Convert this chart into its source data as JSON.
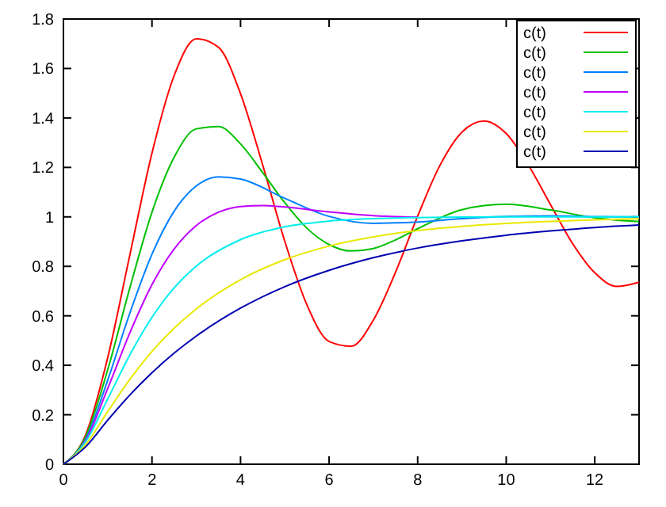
{
  "chart_data": {
    "type": "line",
    "xlim": [
      0,
      13
    ],
    "ylim": [
      0,
      1.8
    ],
    "xticks": [
      0,
      2,
      4,
      6,
      8,
      10,
      12
    ],
    "yticks": [
      0,
      0.2,
      0.4,
      0.6,
      0.8,
      1,
      1.2,
      1.4,
      1.6,
      1.8
    ],
    "legend": "top right",
    "marker": "none",
    "line_style": "solid",
    "series": [
      {
        "name": "c(t)",
        "color": "#ff0000",
        "x": [
          0,
          0.5,
          1,
          1.5,
          2,
          2.5,
          3,
          3.5,
          4,
          4.5,
          5,
          5.5,
          6,
          6.5,
          7,
          7.5,
          8,
          8.5,
          9,
          9.5,
          10,
          10.5,
          11,
          11.5,
          12,
          12.5,
          13
        ],
        "values": [
          0,
          0.118,
          0.431,
          0.846,
          1.258,
          1.571,
          1.72,
          1.686,
          1.498,
          1.21,
          0.901,
          0.644,
          0.496,
          0.477,
          0.583,
          0.776,
          1.003,
          1.207,
          1.343,
          1.388,
          1.337,
          1.21,
          1.05,
          0.892,
          0.774,
          0.719,
          0.736
        ]
      },
      {
        "name": "c(t)",
        "color": "#00c000",
        "x": [
          0,
          0.5,
          1,
          1.5,
          2,
          2.5,
          3,
          3.5,
          4,
          4.5,
          5,
          5.5,
          6,
          6.5,
          7,
          7.5,
          8,
          9,
          10,
          11,
          12,
          13
        ],
        "values": [
          0,
          0.111,
          0.382,
          0.713,
          1.019,
          1.241,
          1.356,
          1.365,
          1.295,
          1.179,
          1.057,
          0.954,
          0.888,
          0.862,
          0.872,
          0.907,
          0.952,
          1.029,
          1.051,
          1.028,
          0.996,
          0.981
        ]
      },
      {
        "name": "c(t)",
        "color": "#0080ff",
        "x": [
          0,
          0.5,
          1,
          1.5,
          2,
          2.5,
          3,
          3.5,
          4,
          5,
          6,
          7,
          8,
          9,
          10,
          11,
          12,
          13
        ],
        "values": [
          0,
          0.1,
          0.34,
          0.611,
          0.849,
          1.023,
          1.125,
          1.162,
          1.153,
          1.075,
          1.002,
          0.974,
          0.979,
          0.993,
          1.002,
          1.004,
          1.001,
          1
        ]
      },
      {
        "name": "c(t)",
        "color": "#c000ff",
        "x": [
          0,
          0.5,
          1,
          1.5,
          2,
          2.5,
          3,
          3.5,
          4,
          4.5,
          5,
          6,
          7,
          8
        ],
        "values": [
          0,
          0.095,
          0.306,
          0.531,
          0.726,
          0.87,
          0.965,
          1.019,
          1.042,
          1.046,
          1.04,
          1.02,
          1.005,
          0.999
        ]
      },
      {
        "name": "c(t)",
        "color": "#00eeee",
        "x": [
          0,
          0.5,
          1,
          1.5,
          2,
          2.5,
          3,
          4,
          5,
          6,
          7,
          8,
          9,
          10,
          11,
          12,
          13
        ],
        "values": [
          0,
          0.09,
          0.264,
          0.442,
          0.594,
          0.713,
          0.801,
          0.908,
          0.96,
          0.983,
          0.993,
          0.997,
          0.999,
          1,
          1,
          1,
          1
        ]
      },
      {
        "name": "c(t)",
        "color": "#e8e800",
        "x": [
          0,
          0.5,
          1,
          1.5,
          2,
          2.5,
          3,
          4,
          5,
          6,
          7,
          8,
          9,
          10,
          11,
          12,
          13
        ],
        "values": [
          0,
          0.079,
          0.213,
          0.343,
          0.456,
          0.55,
          0.628,
          0.746,
          0.827,
          0.882,
          0.919,
          0.945,
          0.962,
          0.974,
          0.982,
          0.988,
          0.992
        ]
      },
      {
        "name": "c(t)",
        "color": "#0000b0",
        "x": [
          0,
          0.5,
          1,
          1.5,
          2,
          2.5,
          3,
          4,
          5,
          6,
          7,
          8,
          9,
          10,
          11,
          12,
          13
        ],
        "values": [
          0,
          0.07,
          0.178,
          0.28,
          0.37,
          0.449,
          0.518,
          0.631,
          0.718,
          0.784,
          0.835,
          0.874,
          0.903,
          0.926,
          0.943,
          0.957,
          0.967
        ]
      }
    ]
  }
}
